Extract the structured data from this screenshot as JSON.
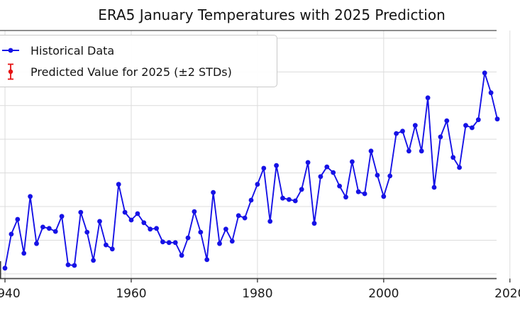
{
  "title": "ERA5 January Temperatures with 2025 Prediction",
  "legend": {
    "items": [
      {
        "id": "historical",
        "label": "Historical Data",
        "marker": "line-dot",
        "color": "#1612e6"
      },
      {
        "id": "prediction",
        "label": "Predicted Value for 2025 (±2 STDs)",
        "marker": "errorbar",
        "color": "#e61212"
      }
    ]
  },
  "axes": {
    "x_ticks": [
      {
        "year": 1940,
        "label": "1940"
      },
      {
        "year": 1960,
        "label": "1960"
      },
      {
        "year": 1980,
        "label": "1980"
      },
      {
        "year": 2000,
        "label": "2000"
      },
      {
        "year": 2020,
        "label": "2020"
      }
    ],
    "y_tick_labels_visible": false,
    "xlim": [
      1939.21,
      2017.89
    ],
    "ylim": [
      0,
      7.37
    ],
    "y_gridlines": [
      0.14,
      1.14,
      2.14,
      3.14,
      4.14,
      5.14,
      6.14,
      7.14
    ],
    "grid": true,
    "grid_color": "#dcdcdc",
    "spine_color": "#4a4a4a",
    "tick_label_color": "#1a1a1a"
  },
  "chart_data": {
    "type": "line",
    "title": "ERA5 January Temperatures with 2025 Prediction",
    "xlabel": "",
    "ylabel": "",
    "note": "y-axis tick labels and the 2025 prediction errorbar are cropped outside the frame; values are in gridline units above the bottom axis",
    "legend_position": "upper left",
    "series": [
      {
        "name": "Historical Data",
        "x": [
          1940,
          1941,
          1942,
          1943,
          1944,
          1945,
          1946,
          1947,
          1948,
          1949,
          1950,
          1951,
          1952,
          1953,
          1954,
          1955,
          1956,
          1957,
          1958,
          1959,
          1960,
          1961,
          1962,
          1963,
          1964,
          1965,
          1966,
          1967,
          1968,
          1969,
          1970,
          1971,
          1972,
          1973,
          1974,
          1975,
          1976,
          1977,
          1978,
          1979,
          1980,
          1981,
          1982,
          1983,
          1984,
          1985,
          1986,
          1987,
          1988,
          1989,
          1990,
          1991,
          1992,
          1993,
          1994,
          1995,
          1996,
          1997,
          1998,
          1999,
          2000,
          2001,
          2002,
          2003,
          2004,
          2005,
          2006,
          2007,
          2008,
          2009,
          2010,
          2011,
          2012,
          2013,
          2014,
          2015,
          2016,
          2017,
          2018
        ],
        "values": [
          0.31,
          1.32,
          1.76,
          0.75,
          2.44,
          1.04,
          1.53,
          1.49,
          1.4,
          1.85,
          0.41,
          0.39,
          1.97,
          1.38,
          0.54,
          1.7,
          1.0,
          0.88,
          2.8,
          1.97,
          1.74,
          1.93,
          1.66,
          1.47,
          1.49,
          1.09,
          1.07,
          1.07,
          0.69,
          1.21,
          1.99,
          1.38,
          0.56,
          2.56,
          1.04,
          1.47,
          1.11,
          1.87,
          1.8,
          2.33,
          2.8,
          3.28,
          1.7,
          3.36,
          2.39,
          2.35,
          2.31,
          2.65,
          3.45,
          1.64,
          3.03,
          3.32,
          3.15,
          2.75,
          2.42,
          3.47,
          2.58,
          2.52,
          3.79,
          3.07,
          2.44,
          3.05,
          4.31,
          4.38,
          3.79,
          4.55,
          3.79,
          5.37,
          2.71,
          4.21,
          4.69,
          3.6,
          3.3,
          4.55,
          4.48,
          4.72,
          6.11,
          5.52,
          4.74
        ]
      }
    ]
  }
}
